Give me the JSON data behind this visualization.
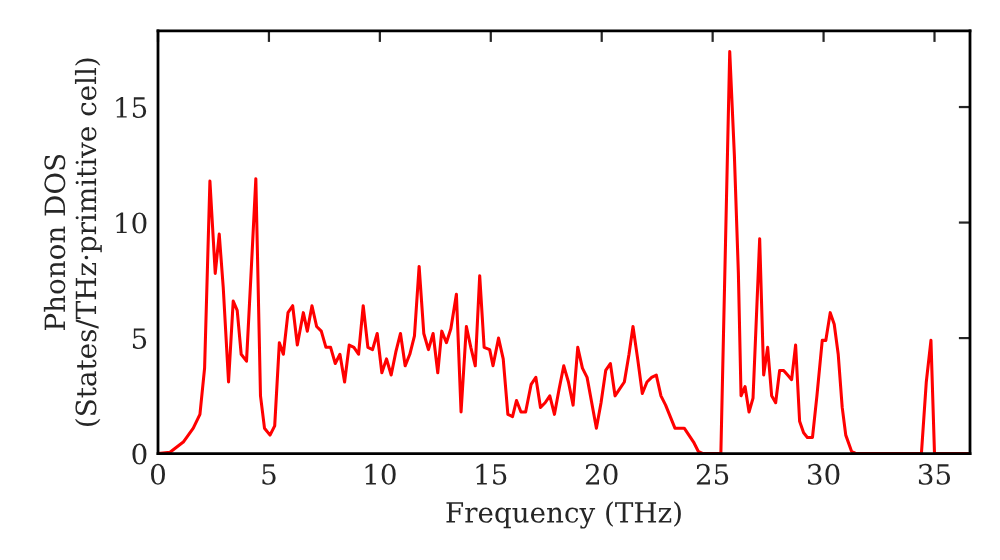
{
  "chart_data": {
    "type": "line",
    "xlabel": "Frequency (THz)",
    "ylabel": "Phonon DOS\n(States/THz·primitive cell)",
    "xlim": [
      0,
      36.6
    ],
    "ylim": [
      0,
      18.3
    ],
    "xticks": [
      0,
      5,
      10,
      15,
      20,
      25,
      30,
      35
    ],
    "yticks": [
      0,
      5,
      10,
      15
    ],
    "grid": false,
    "legend": false,
    "marker": "none",
    "line_style": "solid",
    "series": [
      {
        "color": "#ff0000",
        "x": [
          0,
          0.54,
          1.14,
          1.59,
          1.89,
          2.1,
          2.34,
          2.58,
          2.76,
          2.94,
          3.18,
          3.39,
          3.57,
          3.75,
          3.99,
          4.2,
          4.41,
          4.62,
          4.8,
          5.05,
          5.26,
          5.47,
          5.65,
          5.86,
          6.07,
          6.28,
          6.55,
          6.73,
          6.94,
          7.15,
          7.36,
          7.57,
          7.78,
          7.99,
          8.2,
          8.41,
          8.62,
          8.83,
          9.04,
          9.25,
          9.46,
          9.67,
          9.88,
          10.09,
          10.3,
          10.51,
          10.72,
          10.93,
          11.14,
          11.35,
          11.56,
          11.77,
          11.98,
          12.19,
          12.4,
          12.61,
          12.79,
          13.0,
          13.2,
          13.45,
          13.66,
          13.9,
          14.1,
          14.3,
          14.5,
          14.7,
          14.95,
          15.1,
          15.35,
          15.56,
          15.77,
          15.98,
          16.16,
          16.36,
          16.57,
          16.82,
          17.03,
          17.24,
          17.45,
          17.66,
          17.87,
          18.08,
          18.29,
          18.5,
          18.71,
          18.92,
          19.13,
          19.34,
          19.55,
          19.76,
          19.97,
          20.18,
          20.39,
          20.6,
          20.81,
          21.02,
          21.23,
          21.41,
          21.62,
          21.83,
          22.04,
          22.25,
          22.46,
          22.67,
          22.88,
          23.09,
          23.3,
          23.5,
          23.72,
          23.93,
          24.14,
          24.35,
          24.56,
          25.37,
          25.77,
          25.98,
          26.16,
          26.28,
          26.46,
          26.64,
          26.82,
          27.12,
          27.3,
          27.48,
          27.66,
          27.84,
          28.02,
          28.2,
          28.38,
          28.56,
          28.74,
          28.92,
          29.1,
          29.27,
          29.5,
          29.7,
          29.94,
          30.1,
          30.3,
          30.48,
          30.66,
          30.84,
          31.0,
          31.26,
          31.47,
          34.41,
          34.63,
          34.84,
          35.0,
          36.6
        ],
        "values": [
          0,
          0.06,
          0.5,
          1.1,
          1.7,
          3.7,
          11.8,
          7.8,
          9.5,
          7.2,
          3.1,
          6.6,
          6.2,
          4.3,
          4.0,
          7.9,
          11.9,
          2.5,
          1.1,
          0.8,
          1.2,
          4.8,
          4.3,
          6.1,
          6.4,
          4.7,
          6.1,
          5.3,
          6.4,
          5.5,
          5.3,
          4.6,
          4.6,
          3.9,
          4.3,
          3.1,
          4.7,
          4.6,
          4.3,
          6.4,
          4.6,
          4.5,
          5.2,
          3.5,
          4.1,
          3.4,
          4.4,
          5.2,
          3.8,
          4.3,
          5.1,
          8.1,
          5.2,
          4.5,
          5.2,
          3.5,
          5.3,
          4.8,
          5.4,
          6.9,
          1.8,
          5.5,
          4.6,
          3.8,
          7.7,
          4.6,
          4.5,
          3.8,
          5.0,
          4.1,
          1.7,
          1.6,
          2.3,
          1.8,
          1.8,
          3.0,
          3.3,
          2.0,
          2.2,
          2.5,
          1.7,
          2.8,
          3.8,
          3.1,
          2.1,
          4.6,
          3.7,
          3.3,
          2.2,
          1.1,
          2.2,
          3.6,
          3.9,
          2.5,
          2.8,
          3.1,
          4.3,
          5.5,
          4.1,
          2.6,
          3.1,
          3.3,
          3.4,
          2.5,
          2.1,
          1.6,
          1.1,
          1.1,
          1.1,
          0.8,
          0.5,
          0.1,
          0,
          0,
          17.4,
          12.9,
          7.8,
          2.5,
          2.9,
          1.8,
          2.4,
          9.3,
          3.4,
          4.6,
          2.5,
          2.2,
          3.6,
          3.6,
          3.4,
          3.2,
          4.7,
          1.4,
          0.9,
          0.7,
          0.7,
          2.5,
          4.9,
          4.9,
          6.1,
          5.6,
          4.3,
          2.0,
          0.8,
          0.1,
          0,
          0,
          3.1,
          4.9,
          0,
          0
        ]
      }
    ]
  }
}
